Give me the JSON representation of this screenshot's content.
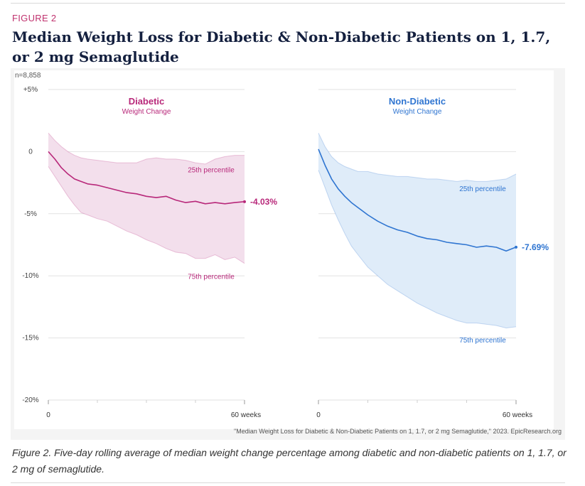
{
  "figure": {
    "label": "FIGURE 2",
    "title": "Median Weight Loss for Diabetic & Non-Diabetic Patients on 1, 1.7, or 2 mg Semaglutide",
    "caption": "Figure 2. Five-day rolling average of median weight change percentage among diabetic and non-diabetic patients on 1, 1.7, or 2 mg of semaglutide.",
    "source": "\"Median Weight Loss for Diabetic & Non-Diabetic Patients on 1, 1.7, or 2 mg Semaglutide,\" 2023. EpicResearch.org",
    "n_label": "n=8,858"
  },
  "colors": {
    "diabetic": "#b8287a",
    "diabetic_band": "#f3dfec",
    "non_diabetic": "#2f75d1",
    "non_diabetic_band": "#dfecf9",
    "grid": "#e2e2e2",
    "text": "#333333",
    "panel_bg": "#ffffff",
    "outer_bg": "#f4f4f4"
  },
  "chart_data": [
    {
      "type": "area",
      "title": "Diabetic",
      "subtitle": "Weight Change",
      "xlabel": "",
      "ylabel": "",
      "xlim": [
        0,
        60
      ],
      "ylim": [
        -20,
        5
      ],
      "x_tick_labels": [
        "0",
        "60 weeks"
      ],
      "y_ticks": [
        5,
        0,
        -5,
        -10,
        -15,
        -20
      ],
      "y_tick_labels": [
        "+5%",
        "0",
        "-5%",
        "-10%",
        "-15%",
        "-20%"
      ],
      "end_label": "-4.03%",
      "percentile_labels": {
        "p25": "25th percentile",
        "p75": "75th percentile"
      },
      "x": [
        0,
        2,
        4,
        6,
        8,
        10,
        12,
        15,
        18,
        21,
        24,
        27,
        30,
        33,
        36,
        39,
        42,
        45,
        48,
        51,
        54,
        57,
        60
      ],
      "series": [
        {
          "name": "Median",
          "values": [
            0,
            -0.6,
            -1.3,
            -1.8,
            -2.2,
            -2.4,
            -2.6,
            -2.7,
            -2.9,
            -3.1,
            -3.3,
            -3.4,
            -3.6,
            -3.7,
            -3.6,
            -3.9,
            -4.1,
            -4.0,
            -4.2,
            -4.1,
            -4.2,
            -4.1,
            -4.03
          ]
        },
        {
          "name": "25th percentile",
          "values": [
            1.5,
            0.9,
            0.4,
            0,
            -0.3,
            -0.5,
            -0.6,
            -0.7,
            -0.8,
            -0.9,
            -0.9,
            -0.9,
            -0.6,
            -0.5,
            -0.6,
            -0.6,
            -0.7,
            -0.9,
            -1.0,
            -0.6,
            -0.4,
            -0.3,
            -0.3
          ]
        },
        {
          "name": "75th percentile",
          "values": [
            -1.2,
            -2.0,
            -2.8,
            -3.6,
            -4.3,
            -4.9,
            -5.1,
            -5.4,
            -5.6,
            -6.0,
            -6.4,
            -6.7,
            -7.1,
            -7.4,
            -7.8,
            -8.1,
            -8.2,
            -8.6,
            -8.6,
            -8.3,
            -8.7,
            -8.5,
            -9.0
          ]
        }
      ]
    },
    {
      "type": "area",
      "title": "Non-Diabetic",
      "subtitle": "Weight Change",
      "xlabel": "",
      "ylabel": "",
      "xlim": [
        0,
        60
      ],
      "ylim": [
        -20,
        5
      ],
      "x_tick_labels": [
        "0",
        "60 weeks"
      ],
      "y_ticks": [
        5,
        0,
        -5,
        -10,
        -15,
        -20
      ],
      "end_label": "-7.69%",
      "percentile_labels": {
        "p25": "25th percentile",
        "p75": "75th percentile"
      },
      "x": [
        0,
        2,
        4,
        6,
        8,
        10,
        12,
        15,
        18,
        21,
        24,
        27,
        30,
        33,
        36,
        39,
        42,
        45,
        48,
        51,
        54,
        57,
        60
      ],
      "series": [
        {
          "name": "Median",
          "values": [
            0.2,
            -1.1,
            -2.2,
            -3.0,
            -3.6,
            -4.1,
            -4.5,
            -5.1,
            -5.6,
            -6.0,
            -6.3,
            -6.5,
            -6.8,
            -7.0,
            -7.1,
            -7.3,
            -7.4,
            -7.5,
            -7.7,
            -7.6,
            -7.7,
            -8.0,
            -7.69
          ]
        },
        {
          "name": "25th percentile",
          "values": [
            1.5,
            0.4,
            -0.4,
            -0.9,
            -1.2,
            -1.4,
            -1.6,
            -1.6,
            -1.8,
            -1.9,
            -2.0,
            -2.0,
            -2.1,
            -2.2,
            -2.2,
            -2.3,
            -2.4,
            -2.3,
            -2.4,
            -2.4,
            -2.3,
            -2.2,
            -1.8
          ]
        },
        {
          "name": "75th percentile",
          "values": [
            -1.5,
            -2.9,
            -4.3,
            -5.5,
            -6.6,
            -7.6,
            -8.3,
            -9.3,
            -10.0,
            -10.7,
            -11.2,
            -11.7,
            -12.2,
            -12.6,
            -13.0,
            -13.3,
            -13.6,
            -13.8,
            -13.8,
            -13.9,
            -14.0,
            -14.2,
            -14.1
          ]
        }
      ]
    }
  ]
}
